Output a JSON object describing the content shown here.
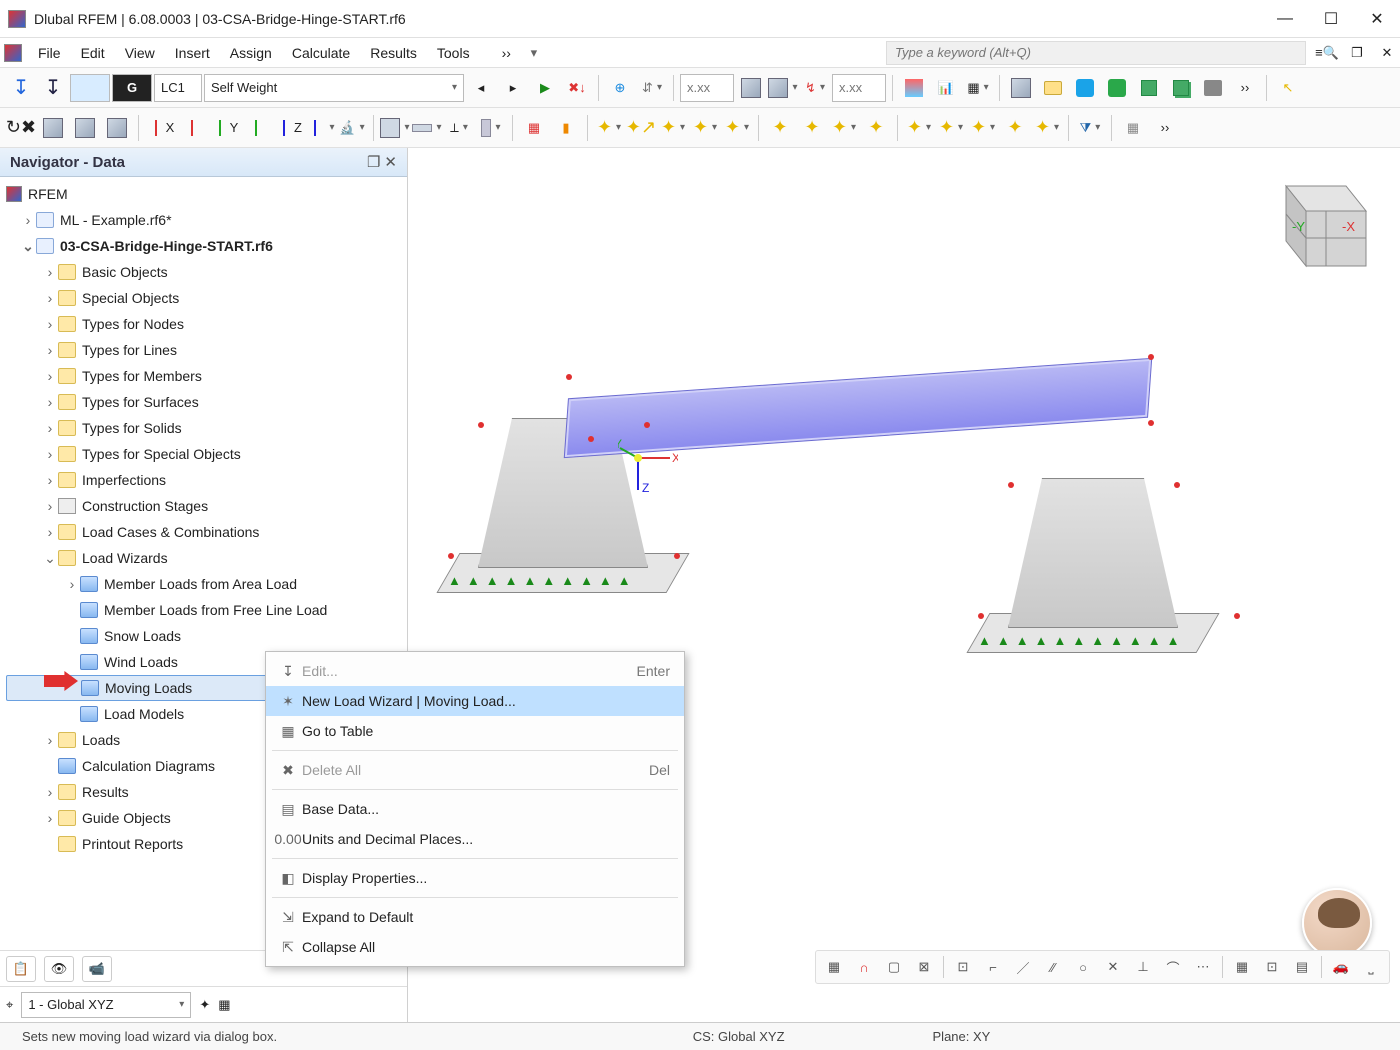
{
  "titlebar": {
    "text": "Dlubal RFEM | 6.08.0003 | 03-CSA-Bridge-Hinge-START.rf6"
  },
  "menubar": {
    "items": [
      "File",
      "Edit",
      "View",
      "Insert",
      "Assign",
      "Calculate",
      "Results",
      "Tools"
    ],
    "more_glyph": "››",
    "search_placeholder": "Type a keyword (Alt+Q)"
  },
  "toolbar1": {
    "g_badge": "G",
    "lc_label": "LC1",
    "lc_name": "Self Weight",
    "xxx_label": "x.xx",
    "xxx2_label": "x.xx"
  },
  "navigator": {
    "title": "Navigator - Data",
    "root": "RFEM",
    "items": [
      {
        "level": 0,
        "tw": "›",
        "icon": "file",
        "label": "ML - Example.rf6*"
      },
      {
        "level": 0,
        "tw": "⌄",
        "icon": "file",
        "label": "03-CSA-Bridge-Hinge-START.rf6",
        "bold": true
      },
      {
        "level": 1,
        "tw": "›",
        "icon": "folder",
        "label": "Basic Objects"
      },
      {
        "level": 1,
        "tw": "›",
        "icon": "folder",
        "label": "Special Objects"
      },
      {
        "level": 1,
        "tw": "›",
        "icon": "folder",
        "label": "Types for Nodes"
      },
      {
        "level": 1,
        "tw": "›",
        "icon": "folder",
        "label": "Types for Lines"
      },
      {
        "level": 1,
        "tw": "›",
        "icon": "folder",
        "label": "Types for Members"
      },
      {
        "level": 1,
        "tw": "›",
        "icon": "folder",
        "label": "Types for Surfaces"
      },
      {
        "level": 1,
        "tw": "›",
        "icon": "folder",
        "label": "Types for Solids"
      },
      {
        "level": 1,
        "tw": "›",
        "icon": "folder",
        "label": "Types for Special Objects"
      },
      {
        "level": 1,
        "tw": "›",
        "icon": "folder",
        "label": "Imperfections"
      },
      {
        "level": 1,
        "tw": "›",
        "icon": "grid",
        "label": "Construction Stages"
      },
      {
        "level": 1,
        "tw": "›",
        "icon": "folder",
        "label": "Load Cases & Combinations"
      },
      {
        "level": 1,
        "tw": "⌄",
        "icon": "folder",
        "label": "Load Wizards"
      },
      {
        "level": 2,
        "tw": "›",
        "icon": "wiz",
        "label": "Member Loads from Area Load"
      },
      {
        "level": 2,
        "tw": "",
        "icon": "wiz",
        "label": "Member Loads from Free Line Load"
      },
      {
        "level": 2,
        "tw": "",
        "icon": "wiz",
        "label": "Snow Loads"
      },
      {
        "level": 2,
        "tw": "",
        "icon": "wiz",
        "label": "Wind Loads"
      },
      {
        "level": 2,
        "tw": "",
        "icon": "wiz",
        "label": "Moving Loads",
        "selected": true
      },
      {
        "level": 2,
        "tw": "",
        "icon": "wiz",
        "label": "Load Models"
      },
      {
        "level": 1,
        "tw": "›",
        "icon": "folder",
        "label": "Loads"
      },
      {
        "level": 1,
        "tw": "",
        "icon": "wiz",
        "label": "Calculation Diagrams"
      },
      {
        "level": 1,
        "tw": "›",
        "icon": "folder",
        "label": "Results"
      },
      {
        "level": 1,
        "tw": "›",
        "icon": "folder",
        "label": "Guide Objects"
      },
      {
        "level": 1,
        "tw": "",
        "icon": "folder",
        "label": "Printout Reports"
      }
    ],
    "coord_system": "1 - Global XYZ"
  },
  "context_menu": {
    "items": [
      {
        "icon": "↧",
        "label": "Edit...",
        "accel": "Enter",
        "disabled": true
      },
      {
        "icon": "✶",
        "label": "New Load Wizard | Moving Load...",
        "highlight": true
      },
      {
        "icon": "▦",
        "label": "Go to Table"
      },
      {
        "sep": true
      },
      {
        "icon": "✖",
        "label": "Delete All",
        "accel": "Del",
        "disabled": true
      },
      {
        "sep": true
      },
      {
        "icon": "▤",
        "label": "Base Data..."
      },
      {
        "icon": "0.00",
        "label": "Units and Decimal Places..."
      },
      {
        "sep": true
      },
      {
        "icon": "◧",
        "label": "Display Properties..."
      },
      {
        "sep": true
      },
      {
        "icon": "⇲",
        "label": "Expand to Default"
      },
      {
        "icon": "⇱",
        "label": "Collapse All"
      }
    ]
  },
  "statusbar": {
    "hint": "Sets new moving load wizard via dialog box.",
    "cs": "CS: Global XYZ",
    "plane": "Plane: XY"
  },
  "viewport": {
    "axes": {
      "x": "X",
      "y": "Y",
      "z": "Z",
      "ny": "-Y",
      "nx": "-X"
    },
    "deck_color": "#8a8aee"
  }
}
